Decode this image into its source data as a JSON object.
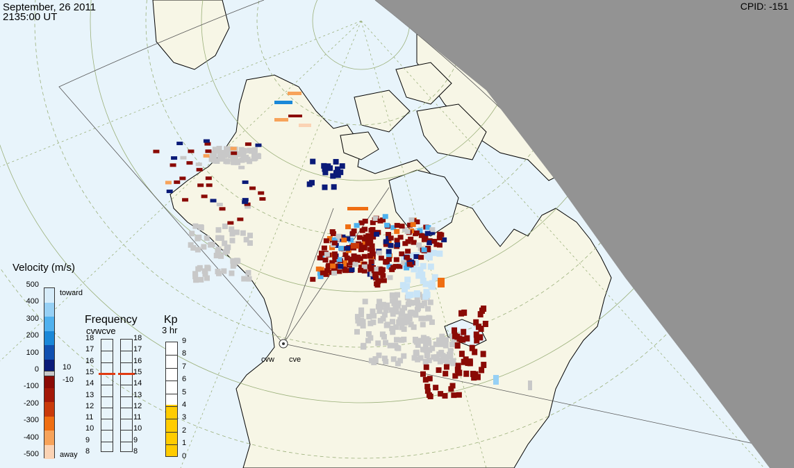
{
  "header": {
    "date": "September, 26 2011",
    "time": "2135:00 UT",
    "cpid": "CPID:  -151"
  },
  "velocity_scale": {
    "title": "Velocity (m/s)",
    "ticks": [
      "500",
      "400",
      "300",
      "200",
      "100",
      "0",
      "-100",
      "-200",
      "-300",
      "-400",
      "-500"
    ],
    "toward_label": "toward",
    "away_label": "away",
    "inner_pos": "10",
    "inner_neg": "-10",
    "colors": [
      "#d6ecfa",
      "#96d0f5",
      "#4fb1ee",
      "#1a88d8",
      "#1050b0",
      "#0a1a78",
      "#8a0a05",
      "#a31808",
      "#c93a0a",
      "#ef6e12",
      "#f7a35a",
      "#fbd3b4"
    ]
  },
  "frequency": {
    "title": "Frequency",
    "subtitle": "cvwcve",
    "ticks": [
      "18",
      "17",
      "16",
      "15",
      "14",
      "13",
      "12",
      "11",
      "10",
      "9",
      "8"
    ],
    "cvw_value": 15,
    "cve_value": 15
  },
  "kp": {
    "title": "Kp",
    "subtitle": "3 hr",
    "ticks": [
      "9",
      "8",
      "7",
      "6",
      "5",
      "4",
      "3",
      "2",
      "1",
      "0"
    ],
    "value": 4
  },
  "radars": {
    "cvw": "cvw",
    "cve": "cve"
  },
  "colors": {
    "land": "#f7f6e6",
    "ocean": "#e8f4fb",
    "night": "#939393",
    "ground_scatter": "#c8c8c8",
    "grid": "#9bb07a"
  }
}
